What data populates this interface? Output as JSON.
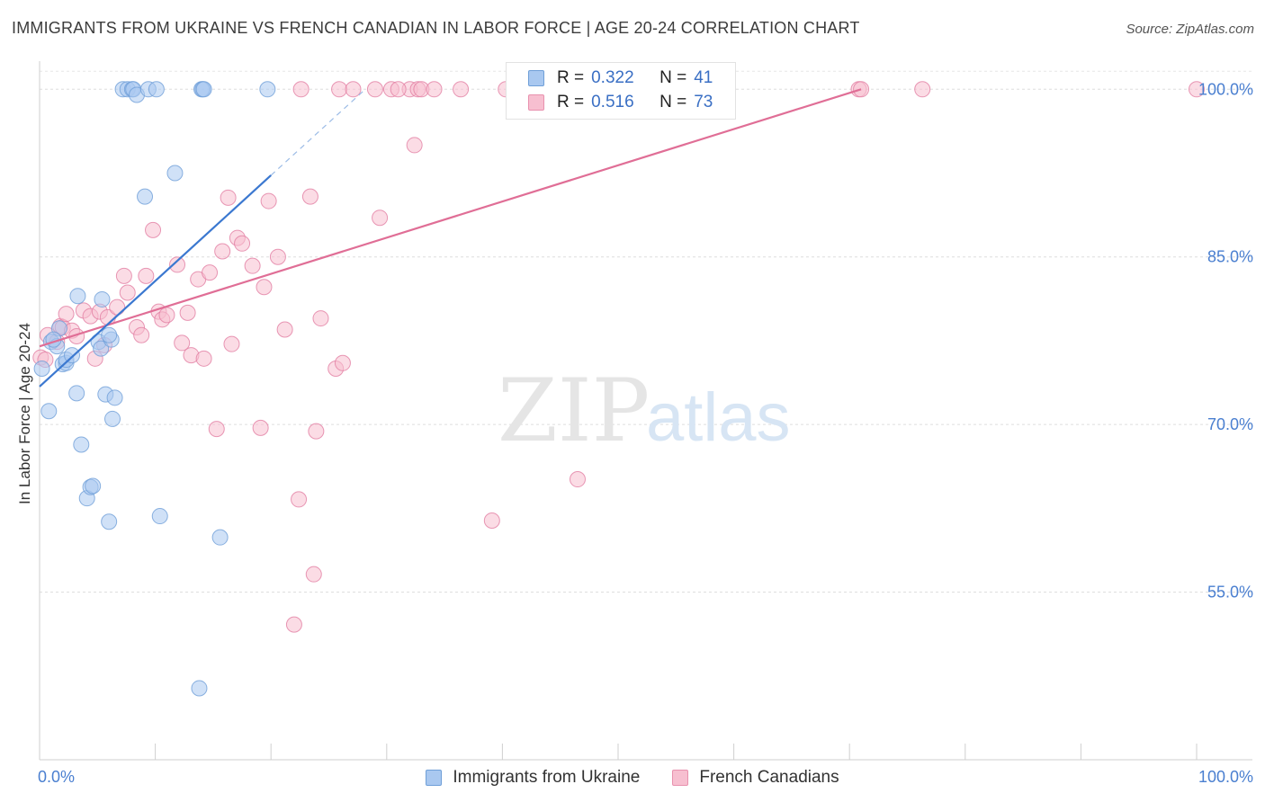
{
  "header": {
    "title": "IMMIGRANTS FROM UKRAINE VS FRENCH CANADIAN IN LABOR FORCE | AGE 20-24 CORRELATION CHART",
    "source": "Source: ZipAtlas.com"
  },
  "watermark": {
    "zip": "ZIP",
    "atlas": "atlas"
  },
  "legend": {
    "series1": {
      "r_label": "R =",
      "r_value": "0.322",
      "n_label": "N =",
      "n_value": "41",
      "color": "#a9c8f0",
      "border": "#6f9fd8"
    },
    "series2": {
      "r_label": "R =",
      "r_value": "0.516",
      "n_label": "N =",
      "n_value": "73",
      "color": "#f7bfd0",
      "border": "#e891ae"
    }
  },
  "bottom_legend": {
    "series1": "Immigrants from Ukraine",
    "series2": "French Canadians"
  },
  "chart_data": {
    "type": "scatter",
    "title": "IMMIGRANTS FROM UKRAINE VS FRENCH CANADIAN IN LABOR FORCE | AGE 20-24 CORRELATION CHART",
    "xlabel": "",
    "ylabel": "In Labor Force | Age 20-24",
    "xlim": [
      0,
      100
    ],
    "ylim": [
      40,
      103
    ],
    "x_tick_labels": [
      "0.0%",
      "100.0%"
    ],
    "y_ticks": [
      55,
      70,
      85,
      100
    ],
    "y_tick_labels": [
      "55.0%",
      "70.0%",
      "85.0%",
      "100.0%"
    ],
    "grid": true,
    "legend_position": "top-center",
    "series": [
      {
        "name": "Immigrants from Ukraine",
        "color": "#6f9fd8",
        "fill": "#a9c8f0",
        "points": [
          [
            0.2,
            75.0
          ],
          [
            0.8,
            71.2
          ],
          [
            1.0,
            77.4
          ],
          [
            1.5,
            77.0
          ],
          [
            1.7,
            78.6
          ],
          [
            2.0,
            75.4
          ],
          [
            2.3,
            75.5
          ],
          [
            2.3,
            75.8
          ],
          [
            2.8,
            76.2
          ],
          [
            3.2,
            72.8
          ],
          [
            3.3,
            81.5
          ],
          [
            3.6,
            68.2
          ],
          [
            4.1,
            63.4
          ],
          [
            4.4,
            64.4
          ],
          [
            4.6,
            64.5
          ],
          [
            5.1,
            77.4
          ],
          [
            5.3,
            76.8
          ],
          [
            5.4,
            81.2
          ],
          [
            5.7,
            72.7
          ],
          [
            6.0,
            61.3
          ],
          [
            6.2,
            77.6
          ],
          [
            6.3,
            70.5
          ],
          [
            6.5,
            72.4
          ],
          [
            7.2,
            100.0
          ],
          [
            7.6,
            100.0
          ],
          [
            8.0,
            100.0
          ],
          [
            8.1,
            100.0
          ],
          [
            8.4,
            99.5
          ],
          [
            9.1,
            90.4
          ],
          [
            9.4,
            100.0
          ],
          [
            10.1,
            100.0
          ],
          [
            10.4,
            61.8
          ],
          [
            11.7,
            92.5
          ],
          [
            13.8,
            46.4
          ],
          [
            14.0,
            100.0
          ],
          [
            14.1,
            100.0
          ],
          [
            14.2,
            100.0
          ],
          [
            15.6,
            59.9
          ],
          [
            19.7,
            100.0
          ],
          [
            6.0,
            78.0
          ],
          [
            1.2,
            77.6
          ]
        ],
        "trend": {
          "x": [
            0.0,
            20.0
          ],
          "y": [
            73.4,
            92.3
          ]
        }
      },
      {
        "name": "French Canadians",
        "color": "#e27ea2",
        "fill": "#f7bfd0",
        "points": [
          [
            0.1,
            76.0
          ],
          [
            0.5,
            75.8
          ],
          [
            0.7,
            78.0
          ],
          [
            1.5,
            77.4
          ],
          [
            1.8,
            78.8
          ],
          [
            2.0,
            78.7
          ],
          [
            2.3,
            79.9
          ],
          [
            2.8,
            78.4
          ],
          [
            3.2,
            77.9
          ],
          [
            3.8,
            80.2
          ],
          [
            4.4,
            79.7
          ],
          [
            4.8,
            75.9
          ],
          [
            5.2,
            80.1
          ],
          [
            5.6,
            77.1
          ],
          [
            5.9,
            79.6
          ],
          [
            6.7,
            80.5
          ],
          [
            7.3,
            83.3
          ],
          [
            7.6,
            81.8
          ],
          [
            8.4,
            78.7
          ],
          [
            8.8,
            78.0
          ],
          [
            9.2,
            83.3
          ],
          [
            9.8,
            87.4
          ],
          [
            10.3,
            80.1
          ],
          [
            10.6,
            79.4
          ],
          [
            11.0,
            79.8
          ],
          [
            11.9,
            84.3
          ],
          [
            12.3,
            77.3
          ],
          [
            12.8,
            80.0
          ],
          [
            13.1,
            76.2
          ],
          [
            13.7,
            83.0
          ],
          [
            14.2,
            75.9
          ],
          [
            14.7,
            83.6
          ],
          [
            15.3,
            69.6
          ],
          [
            15.8,
            85.5
          ],
          [
            16.3,
            90.3
          ],
          [
            16.6,
            77.2
          ],
          [
            17.1,
            86.7
          ],
          [
            17.5,
            86.2
          ],
          [
            18.4,
            84.2
          ],
          [
            19.1,
            69.7
          ],
          [
            19.4,
            82.3
          ],
          [
            19.8,
            90.0
          ],
          [
            20.6,
            85.0
          ],
          [
            21.2,
            78.5
          ],
          [
            22.0,
            52.1
          ],
          [
            22.4,
            63.3
          ],
          [
            22.6,
            100.0
          ],
          [
            23.4,
            90.4
          ],
          [
            23.7,
            56.6
          ],
          [
            23.9,
            69.4
          ],
          [
            24.3,
            79.5
          ],
          [
            25.6,
            75.0
          ],
          [
            25.9,
            100.0
          ],
          [
            26.2,
            75.5
          ],
          [
            27.1,
            100.0
          ],
          [
            29.0,
            100.0
          ],
          [
            29.4,
            88.5
          ],
          [
            30.4,
            100.0
          ],
          [
            32.0,
            100.0
          ],
          [
            32.4,
            95.0
          ],
          [
            32.7,
            100.0
          ],
          [
            33.0,
            100.0
          ],
          [
            34.1,
            100.0
          ],
          [
            36.4,
            100.0
          ],
          [
            39.1,
            61.4
          ],
          [
            40.3,
            100.0
          ],
          [
            46.5,
            65.1
          ],
          [
            55.0,
            100.0
          ],
          [
            70.8,
            100.0
          ],
          [
            71.0,
            100.0
          ],
          [
            76.3,
            100.0
          ],
          [
            100.0,
            100.0
          ],
          [
            31.0,
            100.0
          ]
        ],
        "trend": {
          "x": [
            0.0,
            71.0
          ],
          "y": [
            77.0,
            100.0
          ]
        }
      }
    ]
  }
}
